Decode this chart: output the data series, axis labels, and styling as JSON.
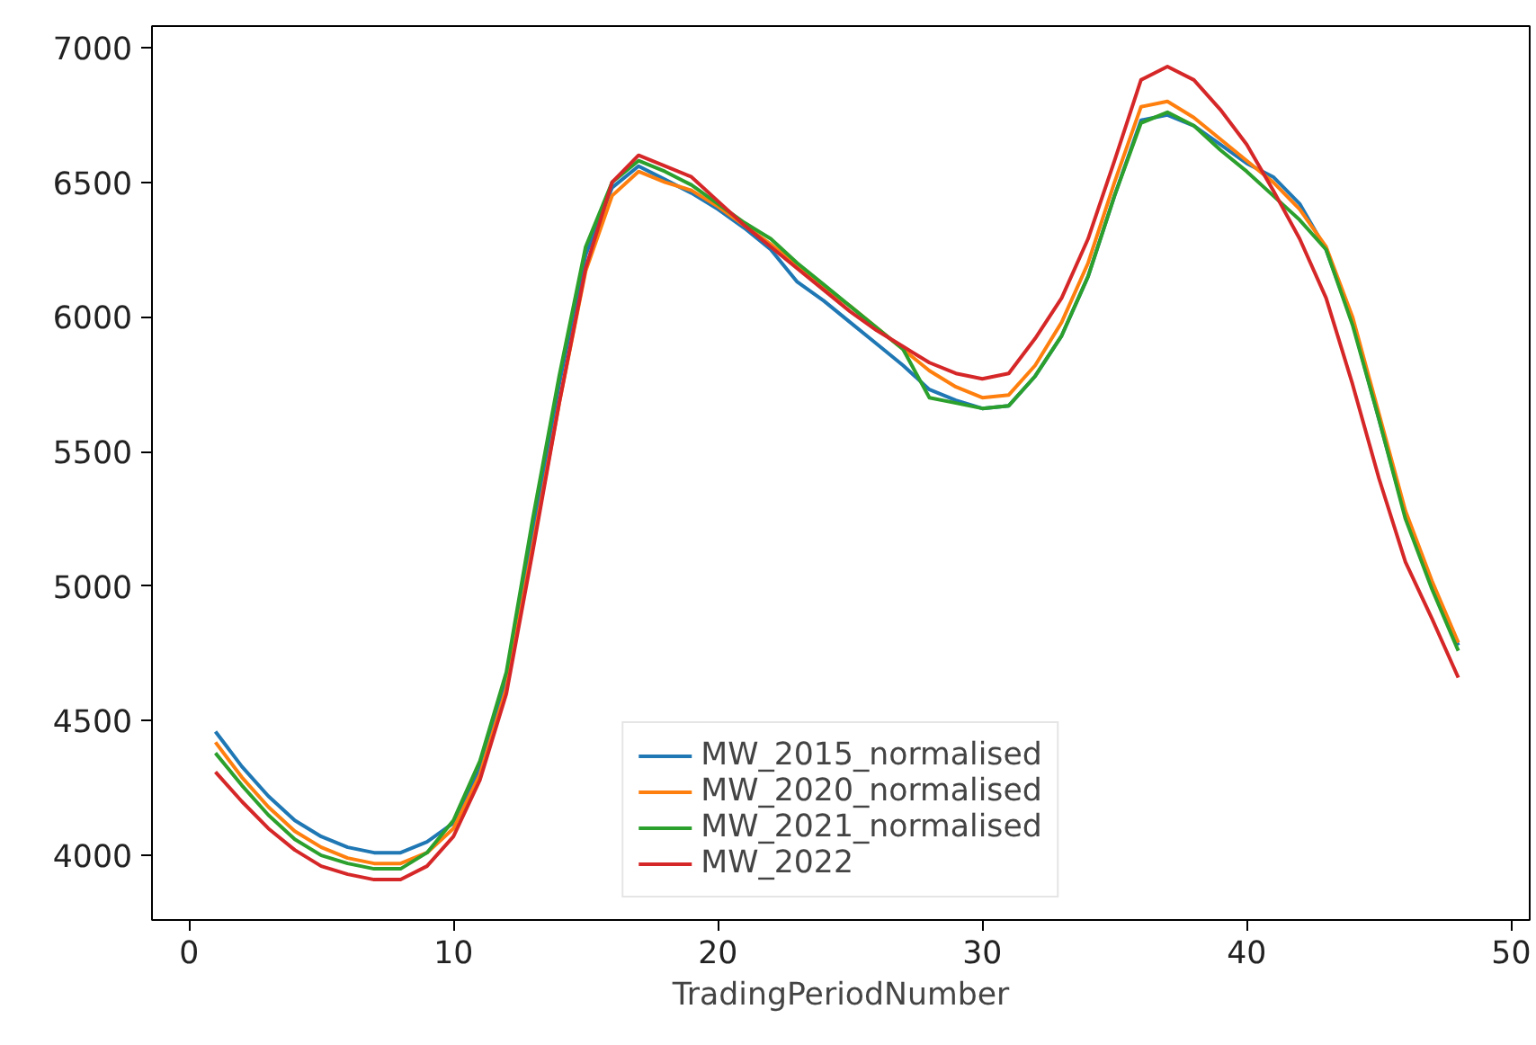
{
  "chart_data": {
    "type": "line",
    "xlabel": "TradingPeriodNumber",
    "x": [
      1,
      2,
      3,
      4,
      5,
      6,
      7,
      8,
      9,
      10,
      11,
      12,
      13,
      14,
      15,
      16,
      17,
      18,
      19,
      20,
      21,
      22,
      23,
      24,
      25,
      26,
      27,
      28,
      29,
      30,
      31,
      32,
      33,
      34,
      35,
      36,
      37,
      38,
      39,
      40,
      41,
      42,
      43,
      44,
      45,
      46,
      47,
      48
    ],
    "series": [
      {
        "name": "MW_2015_normalised",
        "color": "#1f77b4",
        "values": [
          4460,
          4330,
          4220,
          4130,
          4070,
          4030,
          4010,
          4010,
          4050,
          4120,
          4320,
          4650,
          5200,
          5750,
          6230,
          6480,
          6560,
          6510,
          6460,
          6400,
          6330,
          6250,
          6130,
          6060,
          5980,
          5900,
          5820,
          5730,
          5690,
          5660,
          5670,
          5780,
          5930,
          6150,
          6450,
          6730,
          6750,
          6710,
          6640,
          6570,
          6520,
          6420,
          6250,
          5980,
          5620,
          5260,
          5010,
          4780
        ]
      },
      {
        "name": "MW_2020_normalised",
        "color": "#ff7f0e",
        "values": [
          4420,
          4290,
          4180,
          4090,
          4030,
          3990,
          3970,
          3970,
          4010,
          4100,
          4300,
          4620,
          5150,
          5680,
          6170,
          6450,
          6540,
          6500,
          6470,
          6410,
          6340,
          6270,
          6190,
          6110,
          6040,
          5960,
          5880,
          5800,
          5740,
          5700,
          5710,
          5820,
          5980,
          6200,
          6500,
          6780,
          6800,
          6740,
          6660,
          6580,
          6500,
          6400,
          6260,
          6000,
          5640,
          5280,
          5020,
          4790
        ]
      },
      {
        "name": "MW_2021_normalised",
        "color": "#2ca02c",
        "values": [
          4380,
          4260,
          4150,
          4060,
          4000,
          3970,
          3950,
          3950,
          4010,
          4130,
          4350,
          4680,
          5250,
          5780,
          6260,
          6500,
          6580,
          6540,
          6490,
          6420,
          6350,
          6290,
          6200,
          6120,
          6040,
          5960,
          5880,
          5700,
          5680,
          5660,
          5670,
          5780,
          5930,
          6150,
          6450,
          6720,
          6760,
          6710,
          6620,
          6540,
          6450,
          6360,
          6250,
          5970,
          5620,
          5250,
          4990,
          4760
        ]
      },
      {
        "name": "MW_2022",
        "color": "#d62728",
        "values": [
          4310,
          4200,
          4100,
          4020,
          3960,
          3930,
          3910,
          3910,
          3960,
          4070,
          4280,
          4600,
          5130,
          5680,
          6180,
          6500,
          6600,
          6560,
          6520,
          6430,
          6340,
          6260,
          6180,
          6100,
          6020,
          5950,
          5890,
          5830,
          5790,
          5770,
          5790,
          5920,
          6070,
          6290,
          6580,
          6880,
          6930,
          6880,
          6770,
          6640,
          6470,
          6290,
          6070,
          5750,
          5400,
          5090,
          4880,
          4660
        ]
      }
    ],
    "xlim": [
      -1.4,
      50.7
    ],
    "ylim": [
      3760,
      7080
    ],
    "xticks": [
      0,
      10,
      20,
      30,
      40,
      50
    ],
    "yticks": [
      4000,
      4500,
      5000,
      5500,
      6000,
      6500,
      7000
    ],
    "grid": false,
    "legend": "bottom",
    "line_style": "solid"
  }
}
